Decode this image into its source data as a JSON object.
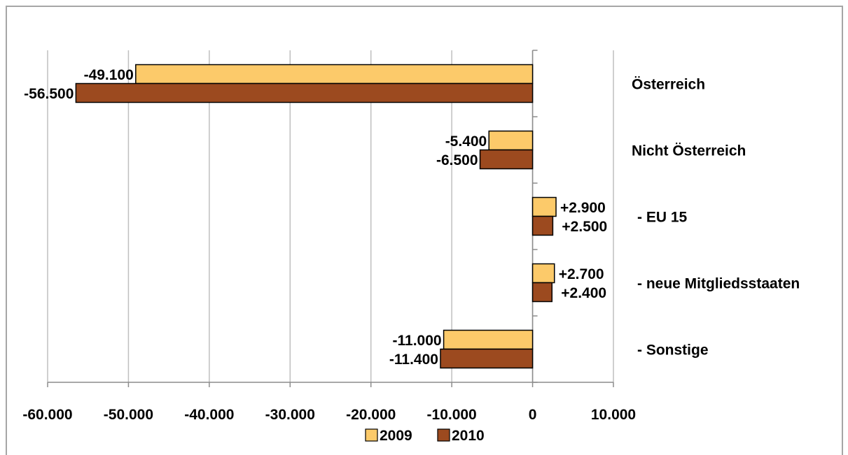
{
  "chart_data": {
    "type": "bar",
    "orientation": "horizontal",
    "categories": [
      "Österreich",
      "Nicht Österreich",
      "- EU 15",
      "- neue Mitgliedsstaaten",
      "- Sonstige"
    ],
    "series": [
      {
        "name": "2009",
        "values": [
          -49100,
          -5400,
          2900,
          2700,
          -11000
        ],
        "labels": [
          "-49.100",
          "-5.400",
          "+2.900",
          "+2.700",
          "-11.000"
        ],
        "color": "#fcca6a"
      },
      {
        "name": "2010",
        "values": [
          -56500,
          -6500,
          2500,
          2400,
          -11400
        ],
        "labels": [
          "-56.500",
          "-6.500",
          "+2.500",
          "+2.400",
          "-11.400"
        ],
        "color": "#9c4a1f"
      }
    ],
    "xlim": [
      -60000,
      10000
    ],
    "xticks": [
      -60000,
      -50000,
      -40000,
      -30000,
      -20000,
      -10000,
      0,
      10000
    ],
    "xtick_labels": [
      "-60.000",
      "-50.000",
      "-40.000",
      "-30.000",
      "-20.000",
      "-10.000",
      "0",
      "10.000"
    ],
    "grid": true,
    "legend": "bottom",
    "title": "",
    "xlabel": "",
    "ylabel": ""
  }
}
